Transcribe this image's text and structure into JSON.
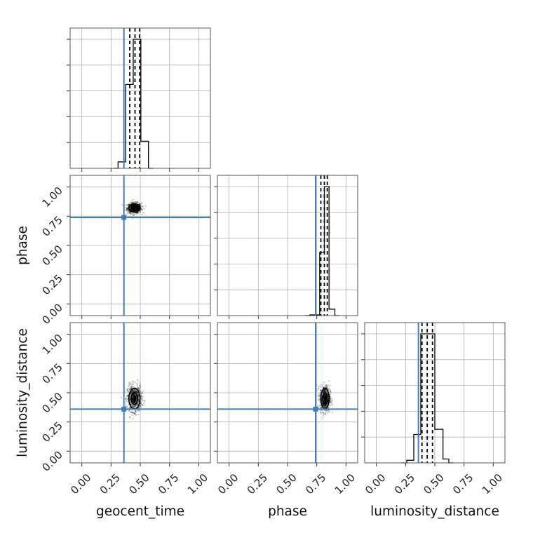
{
  "chart_data": {
    "type": "corner",
    "parameters": [
      "geocent_time",
      "phase",
      "luminosity_distance"
    ],
    "axis_range": [
      -0.1,
      1.1
    ],
    "tick_values": [
      0.0,
      0.25,
      0.5,
      0.75,
      1.0
    ],
    "tick_labels": [
      "0.00",
      "0.25",
      "0.50",
      "0.75",
      "1.00"
    ],
    "grid": true,
    "truths": {
      "geocent_time": 0.36,
      "phase": 0.74,
      "luminosity_distance": 0.36
    },
    "colors": {
      "truth": "#3f7fbf",
      "histogram": "#000000",
      "samples": "#000000",
      "grid": "#b0b0b0"
    },
    "histograms": [
      {
        "parameter": "geocent_time",
        "bin_edges": [
          0.31,
          0.375,
          0.44,
          0.505,
          0.57
        ],
        "values": [
          0.05,
          0.65,
          1.0,
          0.21
        ],
        "quantiles": [
          0.41,
          0.455,
          0.495
        ]
      },
      {
        "parameter": "phase",
        "bin_edges": [
          0.69,
          0.775,
          0.815,
          0.855,
          0.905
        ],
        "values": [
          0.005,
          0.49,
          1.0,
          0.05
        ],
        "quantiles": [
          0.785,
          0.815,
          0.84
        ]
      },
      {
        "parameter": "luminosity_distance",
        "bin_edges": [
          0.26,
          0.32,
          0.38,
          0.5,
          0.57,
          0.62
        ],
        "values": [
          0.02,
          0.22,
          1.0,
          0.26,
          0.03
        ],
        "quantiles": [
          0.39,
          0.435,
          0.48
        ]
      }
    ],
    "scatter_panels": [
      {
        "x": "geocent_time",
        "y": "phase",
        "center": [
          0.45,
          0.82
        ],
        "spread": [
          0.03,
          0.022
        ]
      },
      {
        "x": "geocent_time",
        "y": "luminosity_distance",
        "center": [
          0.45,
          0.45
        ],
        "spread": [
          0.03,
          0.055
        ]
      },
      {
        "x": "phase",
        "y": "luminosity_distance",
        "center": [
          0.82,
          0.45
        ],
        "spread": [
          0.022,
          0.055
        ]
      }
    ]
  }
}
